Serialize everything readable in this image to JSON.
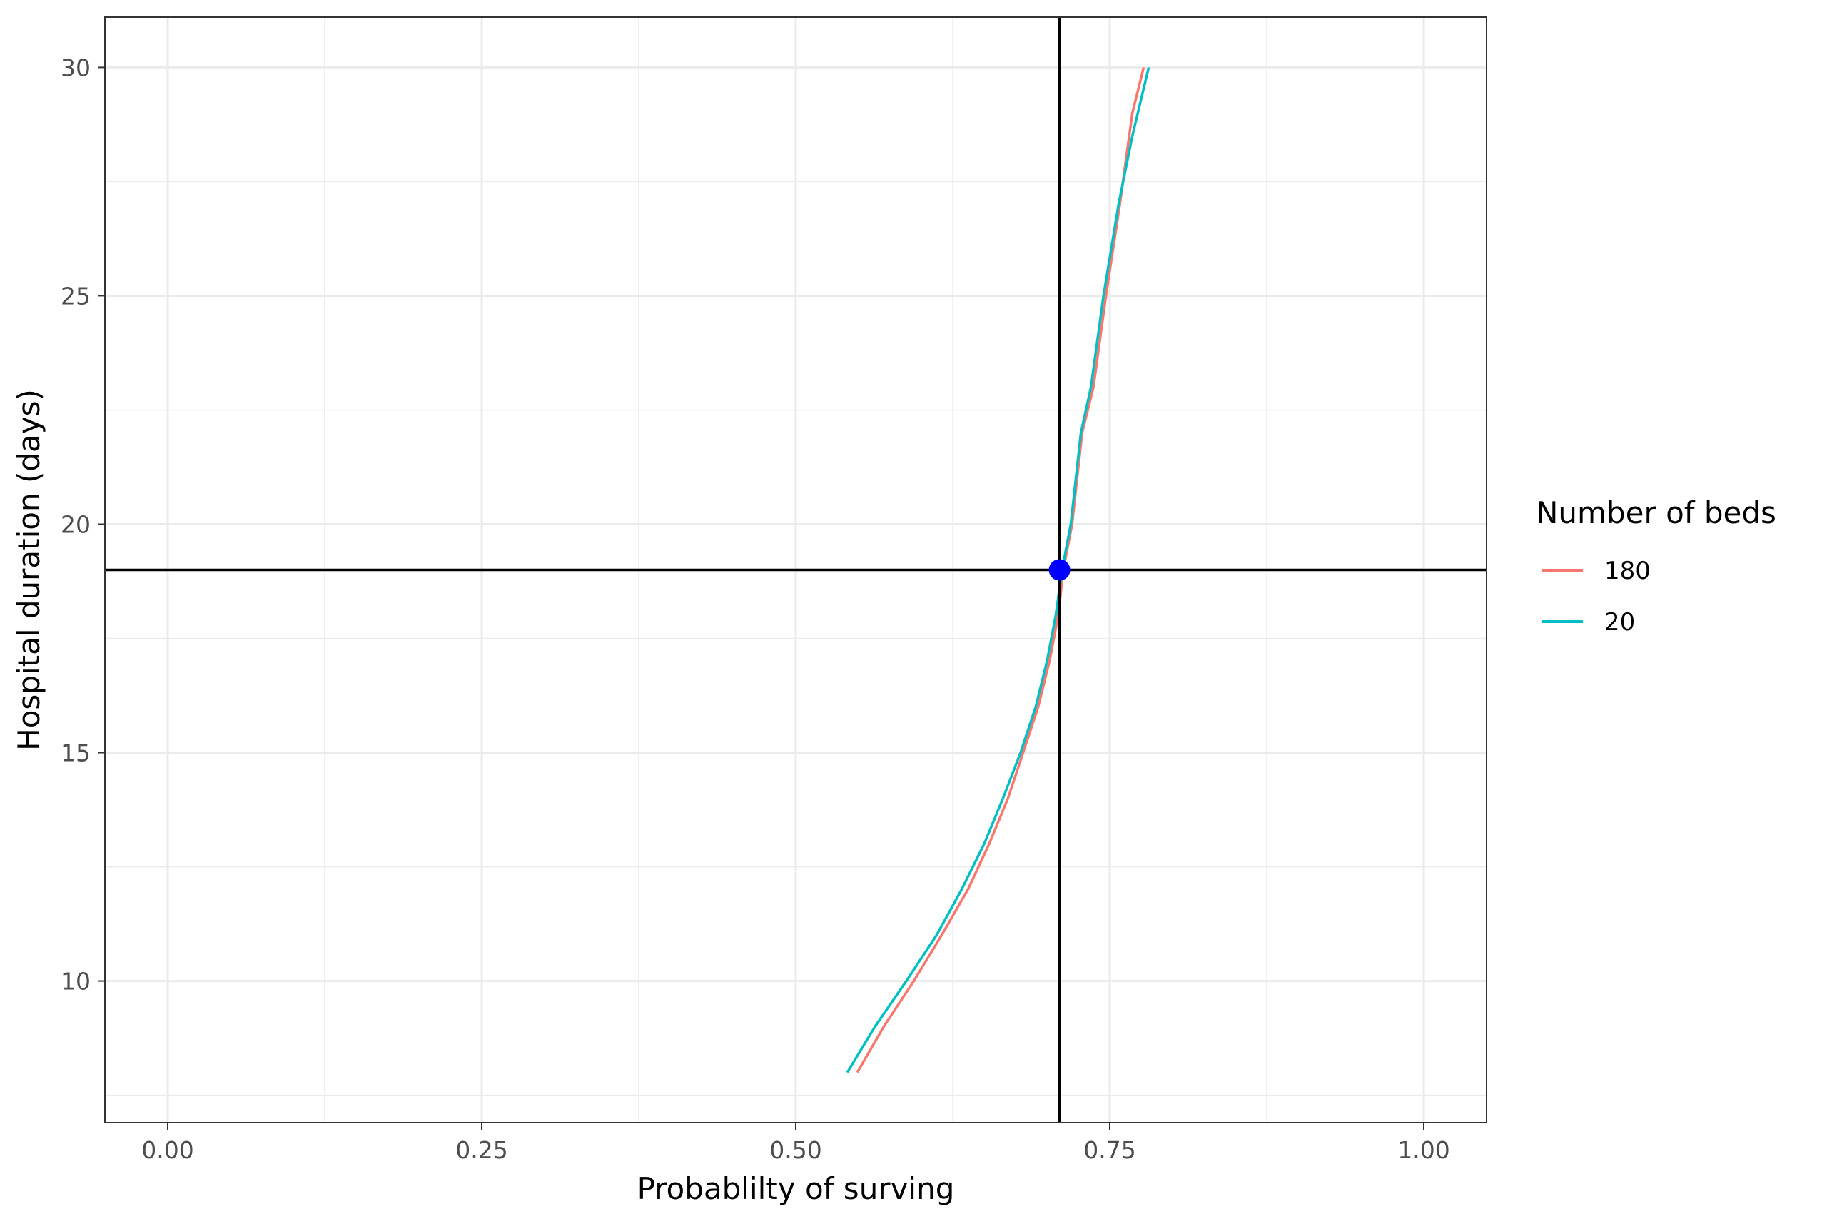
{
  "chart_data": {
    "type": "line",
    "title": "",
    "xlabel": "Probablilty of surving",
    "ylabel": "Hospital duration (days)",
    "xlim": [
      -0.05,
      1.05
    ],
    "ylim": [
      6.9,
      31.1
    ],
    "x_ticks": [
      0.0,
      0.25,
      0.5,
      0.75,
      1.0
    ],
    "x_tick_labels": [
      "0.00",
      "0.25",
      "0.50",
      "0.75",
      "1.00"
    ],
    "y_ticks": [
      10,
      15,
      20,
      25,
      30
    ],
    "y_tick_labels": [
      "10",
      "15",
      "20",
      "25",
      "30"
    ],
    "grid": true,
    "legend": {
      "title": "Number of beds",
      "placement": "right"
    },
    "series": [
      {
        "name": "180",
        "color": "#F8766D",
        "points": [
          [
            0.549,
            8
          ],
          [
            0.57,
            9
          ],
          [
            0.594,
            10
          ],
          [
            0.616,
            11
          ],
          [
            0.637,
            12
          ],
          [
            0.654,
            13
          ],
          [
            0.669,
            14
          ],
          [
            0.681,
            15
          ],
          [
            0.693,
            16
          ],
          [
            0.702,
            17
          ],
          [
            0.709,
            18
          ],
          [
            0.713,
            19
          ],
          [
            0.72,
            20
          ],
          [
            0.728,
            22
          ],
          [
            0.737,
            23
          ],
          [
            0.747,
            25
          ],
          [
            0.758,
            27
          ],
          [
            0.768,
            29
          ],
          [
            0.777,
            30
          ]
        ]
      },
      {
        "name": "20",
        "color": "#00BFC4",
        "points": [
          [
            0.541,
            8
          ],
          [
            0.563,
            9
          ],
          [
            0.588,
            10
          ],
          [
            0.612,
            11
          ],
          [
            0.632,
            12
          ],
          [
            0.65,
            13
          ],
          [
            0.665,
            14
          ],
          [
            0.679,
            15
          ],
          [
            0.691,
            16
          ],
          [
            0.7,
            17
          ],
          [
            0.707,
            18
          ],
          [
            0.712,
            19
          ],
          [
            0.719,
            20
          ],
          [
            0.727,
            22
          ],
          [
            0.735,
            23
          ],
          [
            0.745,
            25
          ],
          [
            0.757,
            27
          ],
          [
            0.768,
            28.5
          ],
          [
            0.781,
            30
          ]
        ]
      }
    ],
    "reference_lines": {
      "x": 0.71,
      "y": 19,
      "color": "#000000"
    },
    "highlight_point": {
      "x": 0.71,
      "y": 19,
      "color": "#0000FF"
    }
  }
}
